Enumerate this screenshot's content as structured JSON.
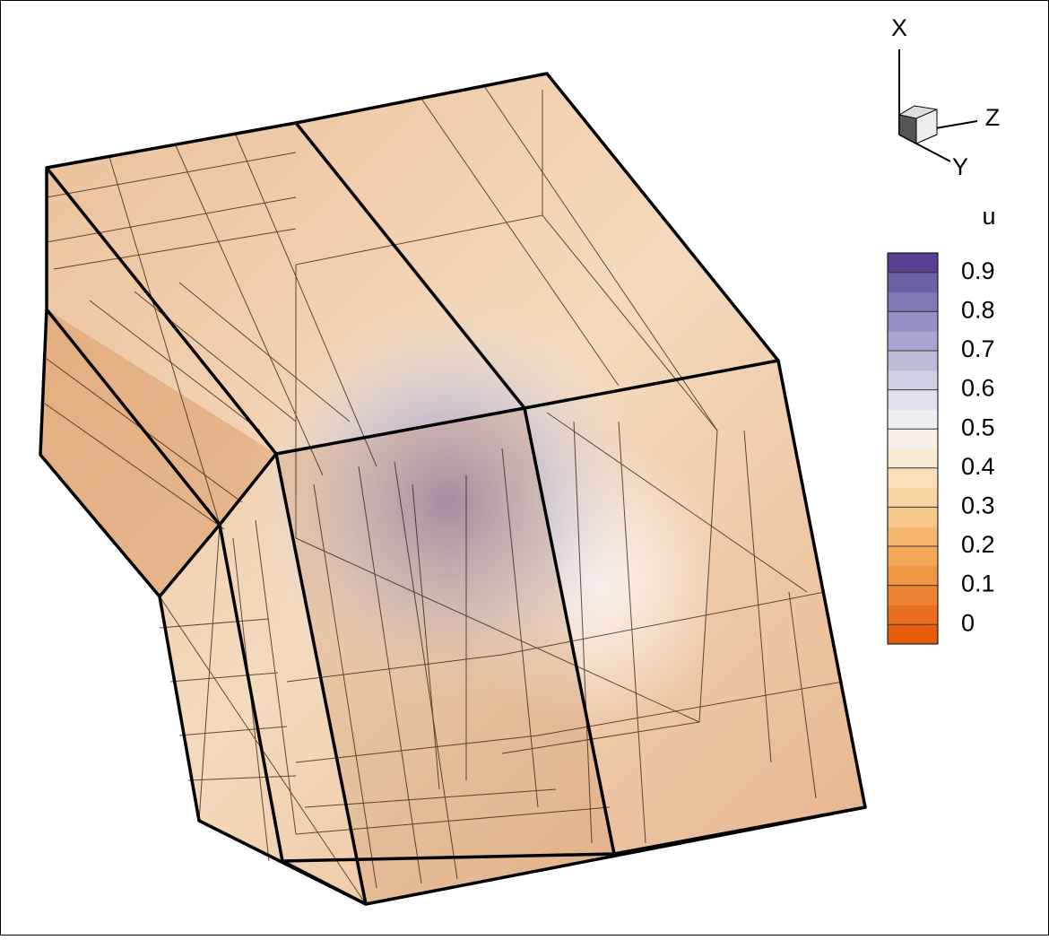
{
  "triad": {
    "x_label": "X",
    "y_label": "Y",
    "z_label": "Z"
  },
  "colorbar": {
    "title": "u",
    "range": [
      -0.05,
      0.95
    ],
    "ticks": [
      0,
      0.1,
      0.2,
      0.3,
      0.4,
      0.5,
      0.6,
      0.7,
      0.8,
      0.9
    ],
    "colors": [
      "#e65c0a",
      "#ea7020",
      "#ed8330",
      "#f09642",
      "#f2a858",
      "#f4b870",
      "#f6c78a",
      "#f8d4a2",
      "#f9e0bb",
      "#fae9d2",
      "#f7efe8",
      "#eeeef2",
      "#e0e1ec",
      "#cfd0e4",
      "#bcbcda",
      "#a8a6cf",
      "#9490c3",
      "#7f79b5",
      "#6b61a6",
      "#573f91"
    ]
  }
}
